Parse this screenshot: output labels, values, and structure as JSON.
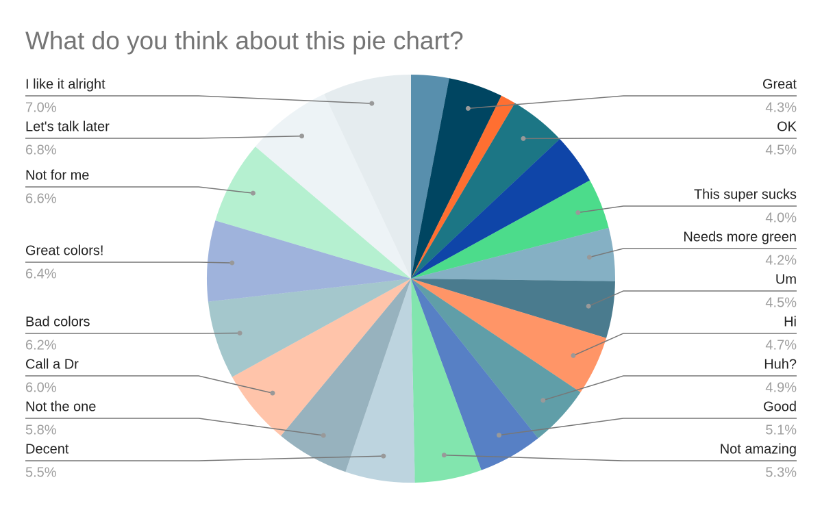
{
  "chart_data": {
    "type": "pie",
    "title": "What do you think about this pie chart?",
    "categories": [
      null,
      "Great",
      null,
      "OK",
      null,
      "This super sucks",
      "Needs more green",
      "Um",
      "Hi",
      "Huh?",
      "Good",
      "Not amazing",
      "Decent",
      "Not the one",
      "Call a Dr",
      "Bad colors",
      "Great colors!",
      "Not for me",
      "Let's talk later",
      "I like it alright"
    ],
    "values": [
      3.0,
      4.3,
      1.2,
      4.5,
      4.0,
      4.0,
      4.2,
      4.5,
      4.7,
      4.9,
      5.1,
      5.3,
      5.5,
      5.8,
      6.0,
      6.2,
      6.4,
      6.6,
      6.8,
      7.0
    ],
    "value_labels": [
      null,
      "4.3%",
      null,
      "4.5%",
      null,
      "4.0%",
      "4.2%",
      "4.5%",
      "4.7%",
      "4.9%",
      "5.1%",
      "5.3%",
      "5.5%",
      "5.8%",
      "6.0%",
      "6.2%",
      "6.4%",
      "6.6%",
      "6.8%",
      "7.0%"
    ],
    "colors": [
      "#588fad",
      "#004561",
      "#ff6f31",
      "#1c7685",
      "#0f45a8",
      "#4cdc8b",
      "#85b0c4",
      "#4a7b8e",
      "#ff9567",
      "#609ea8",
      "#5780c5",
      "#82e5ae",
      "#bdd4df",
      "#97b2be",
      "#ffc4aa",
      "#a4c7cc",
      "#9fb3dc",
      "#b5f0d0",
      "#edf3f6",
      "#e5ecef"
    ]
  }
}
